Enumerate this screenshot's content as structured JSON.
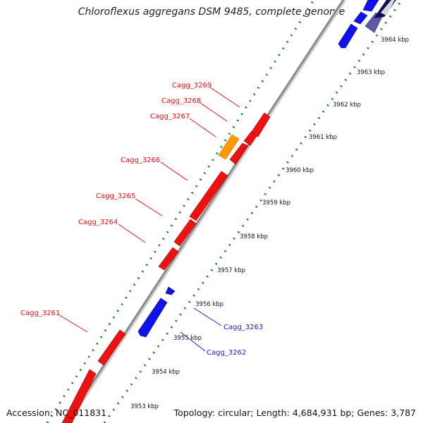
{
  "title": "Chloroflexus aggregans DSM 9485, complete genome",
  "footer": {
    "accession": "Accession: NC_011831",
    "topology": "Topology: circular; Length: 4,684,931 bp; Genes: 3,787"
  },
  "colors": {
    "forward_gene": "#ee1111",
    "reverse_gene": "#1111ee",
    "highlight_gene": "#ff9900",
    "backbone": "#8a8a8a",
    "dots": "#1e7d1e"
  },
  "ticks": [
    "3953 kbp",
    "3954 kbp",
    "3955 kbp",
    "3956 kbp",
    "3957 kbp",
    "3958 kbp",
    "3959 kbp",
    "3960 kbp",
    "3961 kbp",
    "3962 kbp",
    "3963 kbp",
    "3964 kbp"
  ],
  "genes": [
    {
      "name": "Cagg_3269",
      "strand": "forward"
    },
    {
      "name": "Cagg_3268",
      "strand": "forward"
    },
    {
      "name": "Cagg_3267",
      "strand": "forward"
    },
    {
      "name": "Cagg_3266",
      "strand": "forward"
    },
    {
      "name": "Cagg_3265",
      "strand": "forward"
    },
    {
      "name": "Cagg_3264",
      "strand": "forward"
    },
    {
      "name": "Cagg_3261",
      "strand": "forward"
    },
    {
      "name": "Cagg_3263",
      "strand": "reverse"
    },
    {
      "name": "Cagg_3262",
      "strand": "reverse"
    }
  ]
}
